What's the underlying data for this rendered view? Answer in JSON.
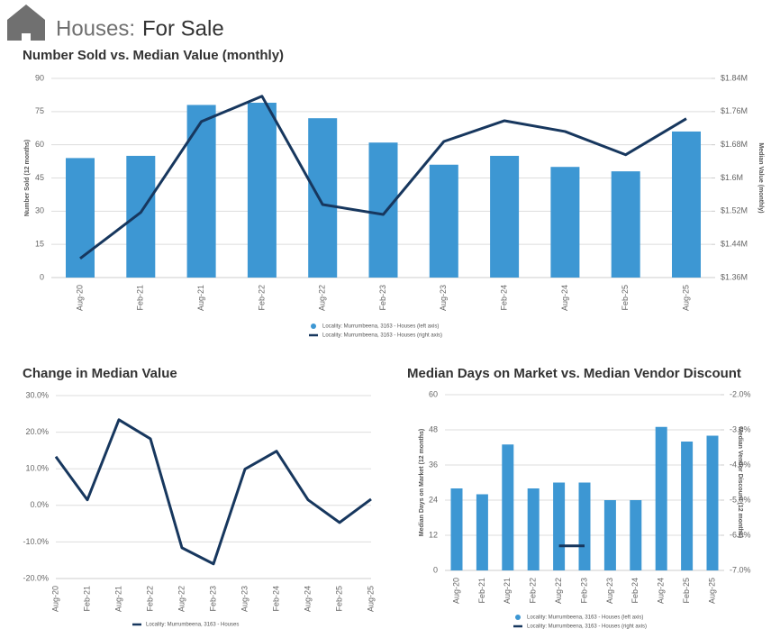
{
  "header": {
    "prefix": "Houses:",
    "title": "For Sale"
  },
  "chart_data": [
    {
      "type": "combo",
      "title": "Number Sold vs. Median Value (monthly)",
      "categories": [
        "Aug-20",
        "Feb-21",
        "Aug-21",
        "Feb-22",
        "Aug-22",
        "Feb-23",
        "Aug-23",
        "Feb-24",
        "Aug-24",
        "Feb-25",
        "Aug-25"
      ],
      "series": [
        {
          "name": "Locality: Murrumbeena, 3163 - Houses (left axis)",
          "type": "bar",
          "color": "#3d97d3",
          "values": [
            54,
            55,
            78,
            79,
            72,
            61,
            51,
            55,
            50,
            48,
            66
          ]
        },
        {
          "name": "Locality: Murrumbeena, 3163 - Houses (right axis)",
          "type": "line",
          "axis": "y2",
          "color": "#17375e",
          "values": [
            1406000,
            1517000,
            1736000,
            1797000,
            1536000,
            1512000,
            1688000,
            1738000,
            1712000,
            1656000,
            1743000
          ]
        }
      ],
      "ylabel": "Number Sold (12 months)",
      "y2label": "Median Value (monthly)",
      "ylim": [
        0,
        90
      ],
      "yticks": [
        0,
        15,
        30,
        45,
        60,
        75,
        90
      ],
      "y2lim": [
        1360000,
        1840000
      ],
      "y2ticks": [
        {
          "value": 1360000,
          "label": "$1.36M"
        },
        {
          "value": 1440000,
          "label": "$1.44M"
        },
        {
          "value": 1520000,
          "label": "$1.52M"
        },
        {
          "value": 1600000,
          "label": "$1.6M"
        },
        {
          "value": 1680000,
          "label": "$1.68M"
        },
        {
          "value": 1760000,
          "label": "$1.76M"
        },
        {
          "value": 1840000,
          "label": "$1.84M"
        }
      ],
      "grid": true
    },
    {
      "type": "line",
      "title": "Change in Median Value",
      "categories": [
        "Aug-20",
        "Feb-21",
        "Aug-21",
        "Feb-22",
        "Aug-22",
        "Feb-23",
        "Aug-23",
        "Feb-24",
        "Aug-24",
        "Feb-25",
        "Aug-25"
      ],
      "series": [
        {
          "name": "Locality: Murrumbeena, 3163 - Houses",
          "type": "line",
          "color": "#17375e",
          "values": [
            13.3,
            1.5,
            23.4,
            18.2,
            -11.6,
            -16,
            9.9,
            14.8,
            1.5,
            -4.7,
            1.7
          ]
        }
      ],
      "ylim": [
        -20,
        30
      ],
      "yticks": [
        {
          "value": -20,
          "label": "-20.0%"
        },
        {
          "value": -10,
          "label": "-10.0%"
        },
        {
          "value": 0,
          "label": "0.0%"
        },
        {
          "value": 10,
          "label": "10.0%"
        },
        {
          "value": 20,
          "label": "20.0%"
        },
        {
          "value": 30,
          "label": "30.0%"
        }
      ],
      "grid": true
    },
    {
      "type": "combo",
      "title": "Median Days on Market vs. Median Vendor Discount",
      "categories": [
        "Aug-20",
        "Feb-21",
        "Aug-21",
        "Feb-22",
        "Aug-22",
        "Feb-23",
        "Aug-23",
        "Feb-24",
        "Aug-24",
        "Feb-25",
        "Aug-25"
      ],
      "series": [
        {
          "name": "Locality: Murrumbeena, 3163 - Houses (left axis)",
          "type": "bar",
          "color": "#3d97d3",
          "values": [
            28,
            26,
            43,
            28,
            30,
            30,
            24,
            24,
            49,
            44,
            46
          ]
        },
        {
          "name": "Locality: Murrumbeena, 3163 - Houses (right axis)",
          "type": "line",
          "axis": "y2",
          "color": "#17375e",
          "values": [
            null,
            null,
            null,
            null,
            -6.3,
            -6.3,
            null,
            null,
            null,
            null,
            null
          ]
        }
      ],
      "ylabel": "Median Days on Market (12 months)",
      "y2label": "Median Vendor Discount (12 months)",
      "ylim": [
        0,
        60
      ],
      "yticks": [
        0,
        12,
        24,
        36,
        48,
        60
      ],
      "y2lim": [
        -7,
        -2
      ],
      "y2ticks": [
        {
          "value": -7,
          "label": "-7.0%"
        },
        {
          "value": -6,
          "label": "-6.0%"
        },
        {
          "value": -5,
          "label": "-5.0%"
        },
        {
          "value": -4,
          "label": "-4.0%"
        },
        {
          "value": -3,
          "label": "-3.0%"
        },
        {
          "value": -2,
          "label": "-2.0%"
        }
      ],
      "grid": true
    }
  ]
}
